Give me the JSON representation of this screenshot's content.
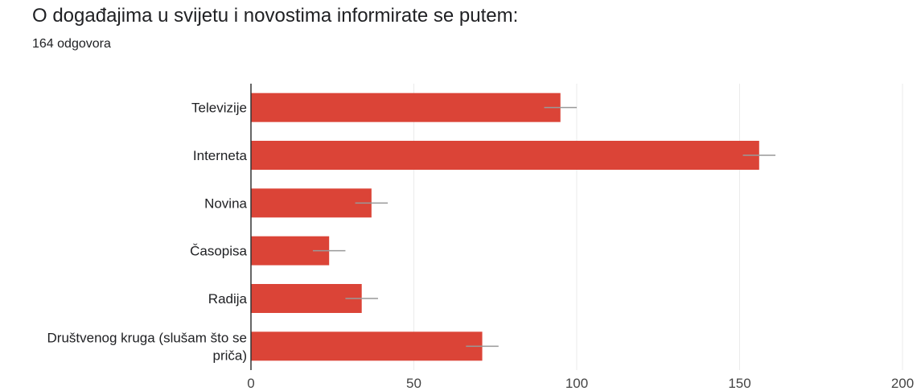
{
  "header": {
    "title": "O događajima u svijetu i novostima informirate se putem:",
    "subtitle": "164 odgovora"
  },
  "chart_data": {
    "type": "bar",
    "orientation": "horizontal",
    "title": "",
    "xlabel": "",
    "ylabel": "",
    "categories": [
      [
        "Televizije"
      ],
      [
        "Interneta"
      ],
      [
        "Novina"
      ],
      [
        "Časopisa"
      ],
      [
        "Radija"
      ],
      [
        "Društvenog kruga (slušam što se",
        "priča)"
      ]
    ],
    "values": [
      95,
      156,
      37,
      24,
      34,
      71
    ],
    "error": [
      5,
      5,
      5,
      5,
      5,
      5
    ],
    "xlim": [
      0,
      200
    ],
    "xticks": [
      "0",
      "50",
      "100",
      "150",
      "200"
    ],
    "grid": true,
    "bar_color": "#db4437",
    "error_color": "#999999",
    "grid_color": "#ebebeb",
    "axis_color": "#333333"
  }
}
